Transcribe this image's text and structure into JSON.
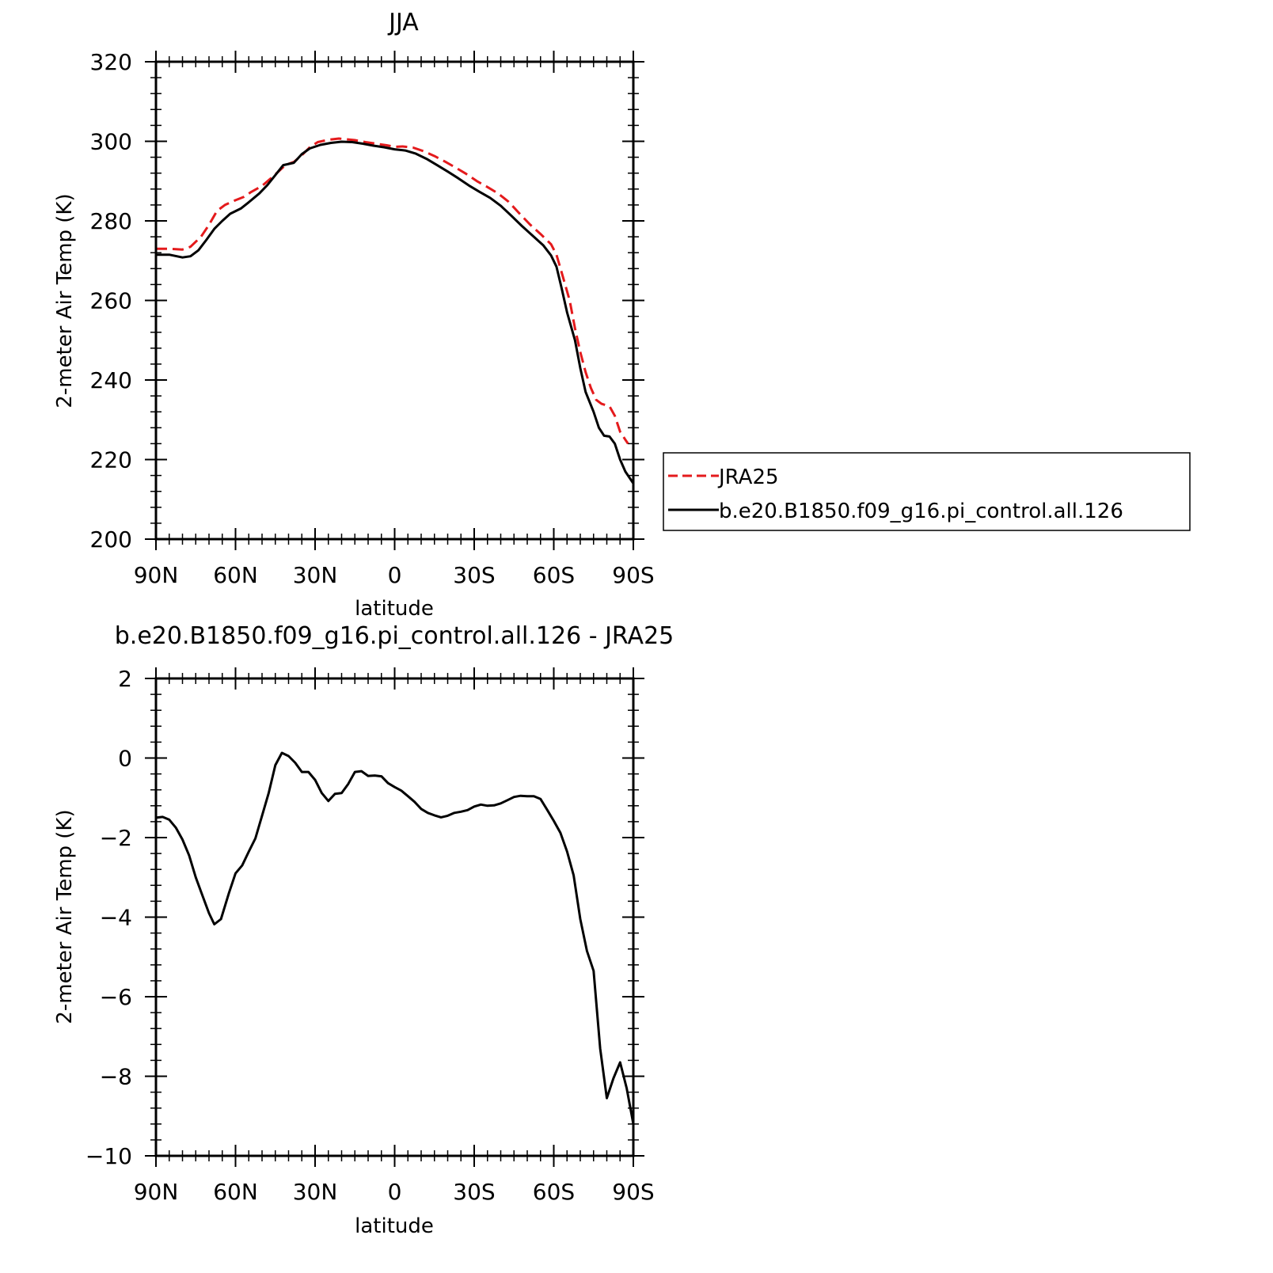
{
  "chart_data": [
    {
      "type": "line",
      "title": "JJA",
      "xlabel": "latitude",
      "ylabel": "2-meter Air Temp (K)",
      "xlim": [
        90,
        -90
      ],
      "ylim": [
        200,
        320
      ],
      "xticks": [
        90,
        60,
        30,
        0,
        -30,
        -60,
        -90
      ],
      "xtick_labels": [
        "90N",
        "60N",
        "30N",
        "0",
        "30S",
        "60S",
        "90S"
      ],
      "yticks": [
        200,
        220,
        240,
        260,
        280,
        300,
        320
      ],
      "ytick_labels": [
        "200",
        "220",
        "240",
        "260",
        "280",
        "300",
        "320"
      ],
      "legend": {
        "placement": "right, outside plot"
      },
      "series": [
        {
          "name": "JRA25",
          "color": "#e41a1c",
          "dash": "dashed",
          "points": [
            [
              90,
              273
            ],
            [
              85,
              273
            ],
            [
              80,
              272.8
            ],
            [
              77,
              273.5
            ],
            [
              73,
              276
            ],
            [
              70,
              279
            ],
            [
              67,
              282.5
            ],
            [
              64,
              284
            ],
            [
              60,
              285.2
            ],
            [
              57,
              286
            ],
            [
              54,
              287.3
            ],
            [
              50,
              288.8
            ],
            [
              47,
              290.5
            ],
            [
              44,
              292.3
            ],
            [
              41,
              294.1
            ],
            [
              38,
              294.8
            ],
            [
              35,
              296.5
            ],
            [
              32,
              298.5
            ],
            [
              29,
              299.8
            ],
            [
              25,
              300.4
            ],
            [
              21,
              300.7
            ],
            [
              18,
              300.5
            ],
            [
              15,
              300.3
            ],
            [
              11,
              299.8
            ],
            [
              7,
              299.4
            ],
            [
              3,
              299
            ],
            [
              0,
              298.6
            ],
            [
              -3,
              298.7
            ],
            [
              -7,
              298.4
            ],
            [
              -11,
              297.5
            ],
            [
              -15,
              296.3
            ],
            [
              -19,
              294.9
            ],
            [
              -23,
              293.4
            ],
            [
              -27,
              291.8
            ],
            [
              -31,
              290
            ],
            [
              -35,
              288.5
            ],
            [
              -39,
              286.9
            ],
            [
              -43,
              284.8
            ],
            [
              -47,
              281.9
            ],
            [
              -51,
              279.1
            ],
            [
              -55,
              276.7
            ],
            [
              -59,
              274.1
            ],
            [
              -61,
              271.5
            ],
            [
              -63,
              267
            ],
            [
              -66,
              260
            ],
            [
              -68,
              253
            ],
            [
              -70,
              247
            ],
            [
              -72,
              242
            ],
            [
              -74,
              238
            ],
            [
              -76,
              235
            ],
            [
              -78,
              234
            ],
            [
              -81,
              233.4
            ],
            [
              -83,
              231
            ],
            [
              -85,
              227
            ],
            [
              -87,
              225
            ],
            [
              -88,
              224
            ]
          ]
        },
        {
          "name": "b.e20.B1850.f09_g16.pi_control.all.126",
          "color": "#000000",
          "dash": "solid",
          "points": [
            [
              90,
              271.5
            ],
            [
              85,
              271.5
            ],
            [
              80,
              270.8
            ],
            [
              77,
              271.1
            ],
            [
              74,
              272.6
            ],
            [
              71,
              275.2
            ],
            [
              68,
              278
            ],
            [
              65,
              280
            ],
            [
              62,
              281.8
            ],
            [
              58,
              283.1
            ],
            [
              55,
              284.7
            ],
            [
              51,
              286.9
            ],
            [
              48,
              289
            ],
            [
              45,
              291.5
            ],
            [
              42,
              294
            ],
            [
              38,
              294.6
            ],
            [
              35,
              296.8
            ],
            [
              32,
              298.2
            ],
            [
              28,
              299.1
            ],
            [
              24,
              299.6
            ],
            [
              20,
              299.9
            ],
            [
              16,
              299.8
            ],
            [
              12,
              299.4
            ],
            [
              8,
              298.9
            ],
            [
              4,
              298.5
            ],
            [
              0,
              298
            ],
            [
              -4,
              297.7
            ],
            [
              -8,
              296.9
            ],
            [
              -12,
              295.6
            ],
            [
              -16,
              294
            ],
            [
              -20,
              292.4
            ],
            [
              -24,
              290.7
            ],
            [
              -28,
              288.9
            ],
            [
              -32,
              287.3
            ],
            [
              -36,
              285.8
            ],
            [
              -40,
              283.8
            ],
            [
              -44,
              281.3
            ],
            [
              -48,
              278.7
            ],
            [
              -52,
              276.3
            ],
            [
              -56,
              273.9
            ],
            [
              -59,
              271.3
            ],
            [
              -61,
              268.5
            ],
            [
              -63,
              263
            ],
            [
              -65,
              257
            ],
            [
              -68,
              250
            ],
            [
              -70,
              243
            ],
            [
              -72,
              237
            ],
            [
              -75,
              232
            ],
            [
              -77,
              228
            ],
            [
              -79,
              226
            ],
            [
              -81,
              225.8
            ],
            [
              -83,
              224
            ],
            [
              -85,
              220
            ],
            [
              -87,
              217
            ],
            [
              -90,
              214
            ]
          ]
        }
      ]
    },
    {
      "type": "line",
      "title": "b.e20.B1850.f09_g16.pi_control.all.126 - JRA25",
      "xlabel": "latitude",
      "ylabel": "2-meter Air Temp (K)",
      "xlim": [
        90,
        -90
      ],
      "ylim": [
        -10,
        2
      ],
      "xticks": [
        90,
        60,
        30,
        0,
        -30,
        -60,
        -90
      ],
      "xtick_labels": [
        "90N",
        "60N",
        "30N",
        "0",
        "30S",
        "60S",
        "90S"
      ],
      "yticks": [
        -10,
        -8,
        -6,
        -4,
        -2,
        0,
        2
      ],
      "ytick_labels": [
        "−10",
        "−8",
        "−6",
        "−4",
        "−2",
        "0",
        "2"
      ],
      "series": [
        {
          "color": "#000000",
          "dash": "solid",
          "points": [
            [
              90,
              -1.5
            ],
            [
              87.5,
              -1.48
            ],
            [
              85,
              -1.55
            ],
            [
              82.5,
              -1.75
            ],
            [
              80,
              -2.05
            ],
            [
              77.5,
              -2.45
            ],
            [
              75,
              -3
            ],
            [
              72.5,
              -3.45
            ],
            [
              70,
              -3.9
            ],
            [
              68,
              -4.18
            ],
            [
              65.5,
              -4.05
            ],
            [
              62.5,
              -3.4
            ],
            [
              60,
              -2.9
            ],
            [
              57.5,
              -2.7
            ],
            [
              55,
              -2.35
            ],
            [
              52.5,
              -2.02
            ],
            [
              50,
              -1.45
            ],
            [
              47.5,
              -0.88
            ],
            [
              45,
              -0.18
            ],
            [
              42.5,
              0.13
            ],
            [
              40,
              0.05
            ],
            [
              37.5,
              -0.12
            ],
            [
              35,
              -0.35
            ],
            [
              32.5,
              -0.35
            ],
            [
              30,
              -0.55
            ],
            [
              27.5,
              -0.88
            ],
            [
              25,
              -1.08
            ],
            [
              22.5,
              -0.9
            ],
            [
              20,
              -0.88
            ],
            [
              17.5,
              -0.65
            ],
            [
              15,
              -0.35
            ],
            [
              12.5,
              -0.33
            ],
            [
              10,
              -0.45
            ],
            [
              7.5,
              -0.44
            ],
            [
              5,
              -0.46
            ],
            [
              2.5,
              -0.63
            ],
            [
              0,
              -0.73
            ],
            [
              -2.5,
              -0.82
            ],
            [
              -5,
              -0.96
            ],
            [
              -7.5,
              -1.1
            ],
            [
              -10,
              -1.28
            ],
            [
              -12.5,
              -1.38
            ],
            [
              -15,
              -1.44
            ],
            [
              -17.5,
              -1.49
            ],
            [
              -20,
              -1.45
            ],
            [
              -22.5,
              -1.38
            ],
            [
              -25,
              -1.35
            ],
            [
              -27.5,
              -1.31
            ],
            [
              -30,
              -1.22
            ],
            [
              -32.5,
              -1.17
            ],
            [
              -35,
              -1.2
            ],
            [
              -37.5,
              -1.19
            ],
            [
              -40,
              -1.14
            ],
            [
              -42.5,
              -1.06
            ],
            [
              -45,
              -0.98
            ],
            [
              -47.5,
              -0.95
            ],
            [
              -50,
              -0.96
            ],
            [
              -52.5,
              -0.96
            ],
            [
              -55,
              -1.03
            ],
            [
              -57.5,
              -1.3
            ],
            [
              -60,
              -1.58
            ],
            [
              -62.5,
              -1.88
            ],
            [
              -65,
              -2.35
            ],
            [
              -67.5,
              -2.95
            ],
            [
              -70,
              -4.05
            ],
            [
              -72.5,
              -4.85
            ],
            [
              -75,
              -5.35
            ],
            [
              -77.5,
              -7.3
            ],
            [
              -80,
              -8.55
            ],
            [
              -82.5,
              -8.05
            ],
            [
              -85,
              -7.65
            ],
            [
              -87.5,
              -8.3
            ],
            [
              -90,
              -9.2
            ]
          ]
        }
      ]
    }
  ]
}
